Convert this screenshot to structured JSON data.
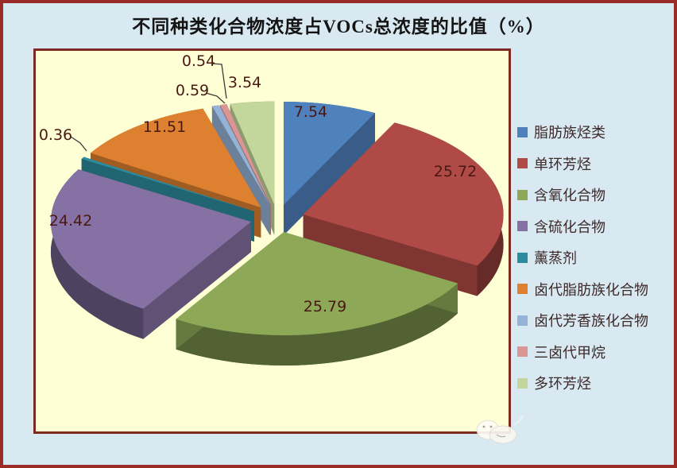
{
  "title": "不同种类化合物浓度占VOCs总浓度的比值（%）",
  "chart_data": {
    "type": "pie",
    "is_3d": true,
    "exploded": true,
    "unit": "%",
    "title": "不同种类化合物浓度占VOCs总浓度的比值（%）",
    "legend_position": "right",
    "start_angle_deg": 0,
    "direction": "clockwise",
    "series": [
      {
        "label": "脂肪族烃类",
        "value": 7.54,
        "color": "#4F81BD"
      },
      {
        "label": "单环芳烃",
        "value": 25.72,
        "color": "#B04A46"
      },
      {
        "label": "含氧化合物",
        "value": 25.79,
        "color": "#8DA957"
      },
      {
        "label": "含硫化合物",
        "value": 24.42,
        "color": "#8571A3"
      },
      {
        "label": "薰蒸剂",
        "value": 0.36,
        "color": "#2E8B9E"
      },
      {
        "label": "卤代脂肪族化合物",
        "value": 11.51,
        "color": "#DD8030"
      },
      {
        "label": "卤代芳香族化合物",
        "value": 0.59,
        "color": "#95B3D7"
      },
      {
        "label": "三卤代甲烷",
        "value": 0.54,
        "color": "#D99694"
      },
      {
        "label": "多环芳烃",
        "value": 3.54,
        "color": "#C3D69B"
      }
    ]
  },
  "colors": {
    "canvas_bg": "#D9E9F2",
    "plot_bg": "#FFFFD6",
    "outer_border": "#9A2B27",
    "plot_border": "#7E2A23",
    "data_label_text": "#4A1812",
    "legend_text": "#3D2A2A",
    "title_text": "#141414"
  }
}
